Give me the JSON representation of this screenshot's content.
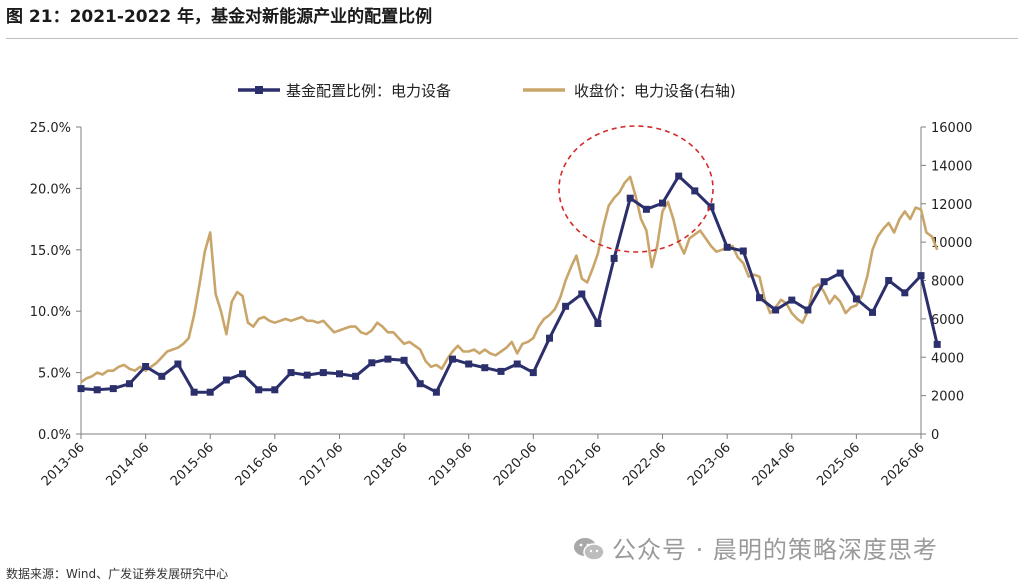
{
  "figure": {
    "title": "图 21：2021-2022 年，基金对新能源产业的配置比例",
    "source": "数据来源：Wind、广发证券发展研究中心",
    "watermark": "公众号 · 晨明的策略深度思考",
    "watermark_icon": "wechat-icon"
  },
  "chart_data": {
    "type": "line",
    "title": "",
    "legend_position": "top-center",
    "grid": false,
    "x_ticks": [
      "2013-06",
      "2014-06",
      "2015-06",
      "2016-06",
      "2017-06",
      "2018-06",
      "2019-06",
      "2020-06",
      "2021-06",
      "2022-06",
      "2023-06",
      "2024-06",
      "2025-06",
      "2026-06"
    ],
    "xlim": [
      "2013-06",
      "2026-06"
    ],
    "left_axis": {
      "ylim": [
        0,
        25
      ],
      "ticks": [
        "0.0%",
        "5.0%",
        "10.0%",
        "15.0%",
        "20.0%",
        "25.0%"
      ]
    },
    "right_axis": {
      "ylim": [
        0,
        16000
      ],
      "ticks": [
        "0",
        "2000",
        "4000",
        "6000",
        "8000",
        "10000",
        "12000",
        "14000",
        "16000"
      ]
    },
    "series": [
      {
        "name": "基金配置比例：电力设备",
        "axis": "left",
        "color": "#2b2f6b",
        "marker": "square",
        "points": [
          [
            "2013-06",
            3.7
          ],
          [
            "2013-09",
            3.6
          ],
          [
            "2013-12",
            3.7
          ],
          [
            "2014-03",
            4.1
          ],
          [
            "2014-06",
            5.5
          ],
          [
            "2014-09",
            4.7
          ],
          [
            "2014-12",
            5.7
          ],
          [
            "2015-03",
            3.4
          ],
          [
            "2015-06",
            3.4
          ],
          [
            "2015-09",
            4.4
          ],
          [
            "2015-12",
            4.9
          ],
          [
            "2016-03",
            3.6
          ],
          [
            "2016-06",
            3.6
          ],
          [
            "2016-09",
            5.0
          ],
          [
            "2016-12",
            4.8
          ],
          [
            "2017-03",
            5.0
          ],
          [
            "2017-06",
            4.9
          ],
          [
            "2017-09",
            4.7
          ],
          [
            "2017-12",
            5.8
          ],
          [
            "2018-03",
            6.1
          ],
          [
            "2018-06",
            6.0
          ],
          [
            "2018-09",
            4.1
          ],
          [
            "2018-12",
            3.4
          ],
          [
            "2019-03",
            6.1
          ],
          [
            "2019-06",
            5.7
          ],
          [
            "2019-09",
            5.4
          ],
          [
            "2019-12",
            5.1
          ],
          [
            "2020-03",
            5.7
          ],
          [
            "2020-06",
            5.0
          ],
          [
            "2020-09",
            7.8
          ],
          [
            "2020-12",
            10.4
          ],
          [
            "2021-03",
            11.4
          ],
          [
            "2021-06",
            9.0
          ],
          [
            "2021-09",
            14.3
          ],
          [
            "2021-12",
            19.2
          ],
          [
            "2022-03",
            18.3
          ],
          [
            "2022-06",
            18.8
          ],
          [
            "2022-09",
            21.0
          ],
          [
            "2022-12",
            19.8
          ],
          [
            "2023-03",
            18.5
          ],
          [
            "2023-06",
            15.2
          ],
          [
            "2023-09",
            14.9
          ],
          [
            "2023-12",
            11.1
          ],
          [
            "2024-03",
            10.1
          ],
          [
            "2024-06",
            10.9
          ],
          [
            "2024-09",
            10.1
          ],
          [
            "2024-12",
            12.4
          ],
          [
            "2025-03",
            13.1
          ],
          [
            "2025-06",
            11.0
          ],
          [
            "2025-09",
            9.9
          ],
          [
            "2025-12",
            12.5
          ],
          [
            "2026-03",
            11.5
          ],
          [
            "2026-06",
            12.9
          ],
          [
            "2026-09",
            7.3
          ]
        ]
      },
      {
        "name": "收盘价：电力设备(右轴)",
        "axis": "right",
        "color": "#c9a56a",
        "marker": "none",
        "points": [
          [
            "2013-06",
            2700
          ],
          [
            "2013-07",
            2900
          ],
          [
            "2013-08",
            3000
          ],
          [
            "2013-09",
            3200
          ],
          [
            "2013-10",
            3100
          ],
          [
            "2013-11",
            3300
          ],
          [
            "2013-12",
            3300
          ],
          [
            "2014-01",
            3500
          ],
          [
            "2014-02",
            3600
          ],
          [
            "2014-03",
            3400
          ],
          [
            "2014-04",
            3300
          ],
          [
            "2014-05",
            3500
          ],
          [
            "2014-06",
            3300
          ],
          [
            "2014-07",
            3500
          ],
          [
            "2014-08",
            3700
          ],
          [
            "2014-09",
            4000
          ],
          [
            "2014-10",
            4300
          ],
          [
            "2014-11",
            4400
          ],
          [
            "2014-12",
            4500
          ],
          [
            "2015-01",
            4700
          ],
          [
            "2015-02",
            5000
          ],
          [
            "2015-03",
            6200
          ],
          [
            "2015-04",
            7800
          ],
          [
            "2015-05",
            9500
          ],
          [
            "2015-06",
            10500
          ],
          [
            "2015-07",
            7300
          ],
          [
            "2015-08",
            6400
          ],
          [
            "2015-09",
            5200
          ],
          [
            "2015-10",
            6900
          ],
          [
            "2015-11",
            7400
          ],
          [
            "2015-12",
            7200
          ],
          [
            "2016-01",
            5800
          ],
          [
            "2016-02",
            5600
          ],
          [
            "2016-03",
            6000
          ],
          [
            "2016-04",
            6100
          ],
          [
            "2016-05",
            5900
          ],
          [
            "2016-06",
            5800
          ],
          [
            "2016-07",
            5900
          ],
          [
            "2016-08",
            6000
          ],
          [
            "2016-09",
            5900
          ],
          [
            "2016-10",
            6000
          ],
          [
            "2016-11",
            6100
          ],
          [
            "2016-12",
            5900
          ],
          [
            "2017-01",
            5900
          ],
          [
            "2017-02",
            5800
          ],
          [
            "2017-03",
            5900
          ],
          [
            "2017-04",
            5600
          ],
          [
            "2017-05",
            5300
          ],
          [
            "2017-06",
            5400
          ],
          [
            "2017-07",
            5500
          ],
          [
            "2017-08",
            5600
          ],
          [
            "2017-09",
            5600
          ],
          [
            "2017-10",
            5300
          ],
          [
            "2017-11",
            5200
          ],
          [
            "2017-12",
            5400
          ],
          [
            "2018-01",
            5800
          ],
          [
            "2018-02",
            5600
          ],
          [
            "2018-03",
            5300
          ],
          [
            "2018-04",
            5300
          ],
          [
            "2018-05",
            5000
          ],
          [
            "2018-06",
            4700
          ],
          [
            "2018-07",
            4800
          ],
          [
            "2018-08",
            4600
          ],
          [
            "2018-09",
            4400
          ],
          [
            "2018-10",
            3800
          ],
          [
            "2018-11",
            3500
          ],
          [
            "2018-12",
            3600
          ],
          [
            "2019-01",
            3400
          ],
          [
            "2019-02",
            3900
          ],
          [
            "2019-03",
            4300
          ],
          [
            "2019-04",
            4600
          ],
          [
            "2019-05",
            4300
          ],
          [
            "2019-06",
            4300
          ],
          [
            "2019-07",
            4400
          ],
          [
            "2019-08",
            4200
          ],
          [
            "2019-09",
            4400
          ],
          [
            "2019-10",
            4200
          ],
          [
            "2019-11",
            4100
          ],
          [
            "2019-12",
            4300
          ],
          [
            "2020-01",
            4500
          ],
          [
            "2020-02",
            4800
          ],
          [
            "2020-03",
            4200
          ],
          [
            "2020-04",
            4700
          ],
          [
            "2020-05",
            4800
          ],
          [
            "2020-06",
            5000
          ],
          [
            "2020-07",
            5600
          ],
          [
            "2020-08",
            6000
          ],
          [
            "2020-09",
            6200
          ],
          [
            "2020-10",
            6500
          ],
          [
            "2020-11",
            7100
          ],
          [
            "2020-12",
            8000
          ],
          [
            "2021-01",
            8700
          ],
          [
            "2021-02",
            9300
          ],
          [
            "2021-03",
            8100
          ],
          [
            "2021-04",
            7900
          ],
          [
            "2021-05",
            8600
          ],
          [
            "2021-06",
            9400
          ],
          [
            "2021-07",
            10800
          ],
          [
            "2021-08",
            11900
          ],
          [
            "2021-09",
            12300
          ],
          [
            "2021-10",
            12600
          ],
          [
            "2021-11",
            13100
          ],
          [
            "2021-12",
            13400
          ],
          [
            "2022-01",
            12400
          ],
          [
            "2022-02",
            11200
          ],
          [
            "2022-03",
            10600
          ],
          [
            "2022-04",
            8700
          ],
          [
            "2022-05",
            9800
          ],
          [
            "2022-06",
            11600
          ],
          [
            "2022-07",
            12100
          ],
          [
            "2022-08",
            11200
          ],
          [
            "2022-09",
            10000
          ],
          [
            "2022-10",
            9400
          ],
          [
            "2022-11",
            10200
          ],
          [
            "2022-12",
            10400
          ],
          [
            "2023-01",
            10600
          ],
          [
            "2023-02",
            10200
          ],
          [
            "2023-03",
            9800
          ],
          [
            "2023-04",
            9500
          ],
          [
            "2023-05",
            9600
          ],
          [
            "2023-06",
            9700
          ],
          [
            "2023-07",
            9800
          ],
          [
            "2023-08",
            9200
          ],
          [
            "2023-09",
            8900
          ],
          [
            "2023-10",
            8200
          ],
          [
            "2023-11",
            8300
          ],
          [
            "2023-12",
            8200
          ],
          [
            "2024-01",
            7000
          ],
          [
            "2024-02",
            6300
          ],
          [
            "2024-03",
            6600
          ],
          [
            "2024-04",
            7000
          ],
          [
            "2024-05",
            6800
          ],
          [
            "2024-06",
            6300
          ],
          [
            "2024-07",
            6000
          ],
          [
            "2024-08",
            5800
          ],
          [
            "2024-09",
            6400
          ],
          [
            "2024-10",
            7600
          ],
          [
            "2024-11",
            7800
          ],
          [
            "2024-12",
            7400
          ],
          [
            "2025-01",
            6800
          ],
          [
            "2025-02",
            7200
          ],
          [
            "2025-03",
            6900
          ],
          [
            "2025-04",
            6300
          ],
          [
            "2025-05",
            6600
          ],
          [
            "2025-06",
            6700
          ],
          [
            "2025-07",
            7200
          ],
          [
            "2025-08",
            8200
          ],
          [
            "2025-09",
            9600
          ],
          [
            "2025-10",
            10300
          ],
          [
            "2025-11",
            10700
          ],
          [
            "2025-12",
            11000
          ],
          [
            "2026-01",
            10500
          ],
          [
            "2026-02",
            11200
          ],
          [
            "2026-03",
            11600
          ],
          [
            "2026-04",
            11200
          ],
          [
            "2026-05",
            11800
          ],
          [
            "2026-06",
            11700
          ],
          [
            "2026-07",
            10500
          ],
          [
            "2026-08",
            10300
          ],
          [
            "2026-09",
            9600
          ]
        ]
      }
    ],
    "annotations": [
      {
        "type": "dashed-ellipse",
        "color": "#d42a2a",
        "label": ""
      }
    ]
  }
}
